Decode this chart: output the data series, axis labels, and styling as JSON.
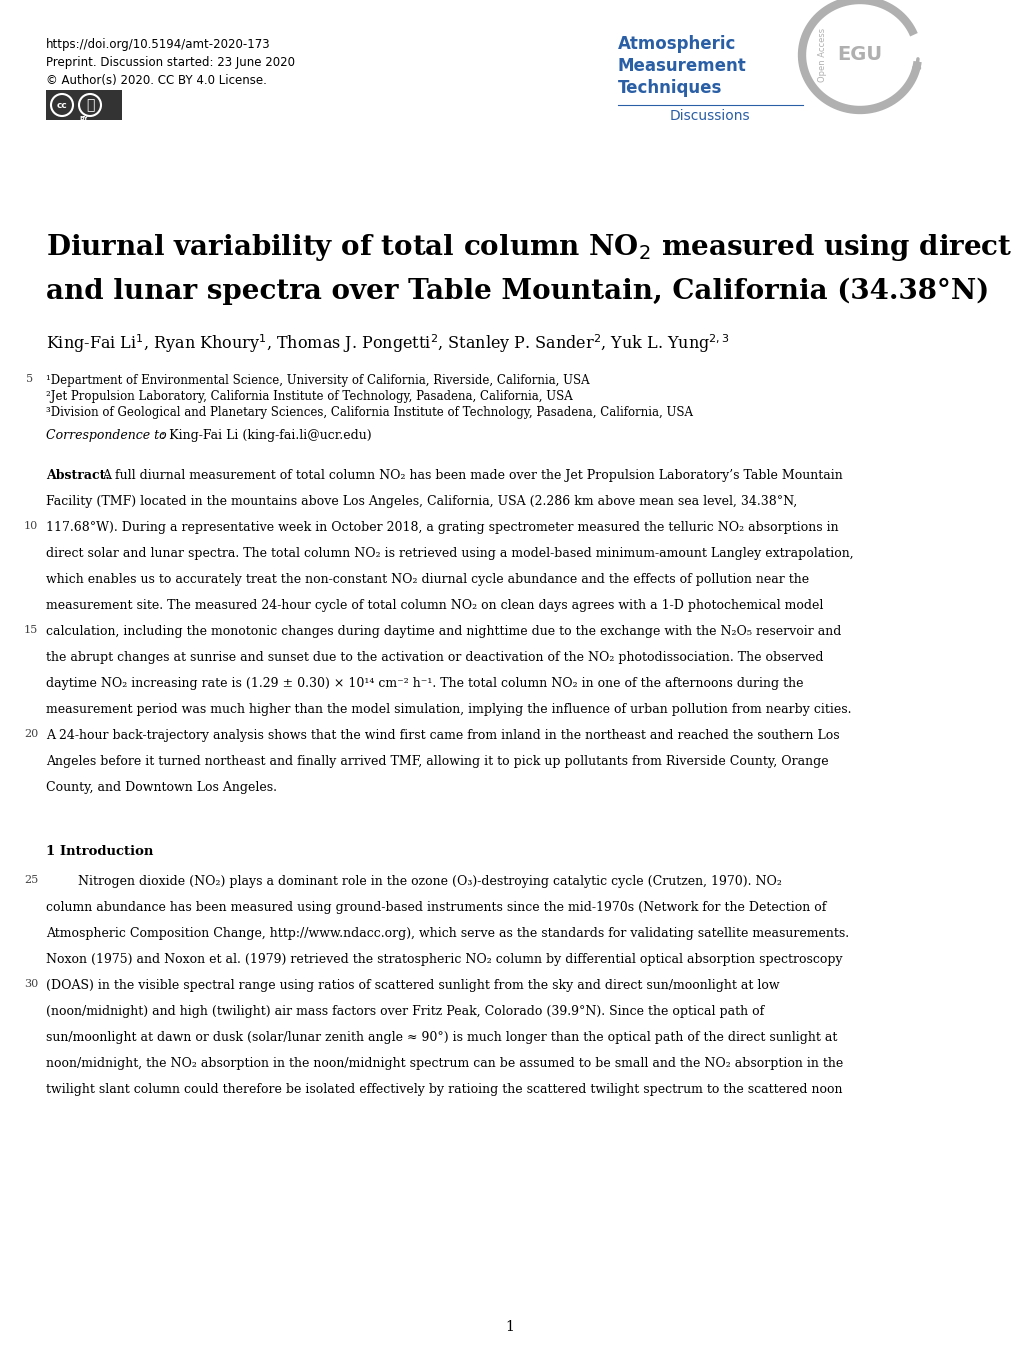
{
  "doi_line": "https://doi.org/10.5194/amt-2020-173",
  "preprint_line": "Preprint. Discussion started: 23 June 2020",
  "license_line": "© Author(s) 2020. CC BY 4.0 License.",
  "journal_name_lines": [
    "Atmospheric",
    "Measurement",
    "Techniques"
  ],
  "journal_sub": "Discussions",
  "journal_color": "#2a5fa5",
  "journal_sub_color": "#2a5fa5",
  "title_line2": "and lunar spectra over Table Mountain, California (34.38°N)",
  "authors": "King-Fai Li¹, Ryan Khoury¹, Thomas J. Pongetti², Stanley P. Sander², Yuk L. Yung²’³",
  "affil1": "¹Department of Environmental Science, University of California, Riverside, California, USA",
  "affil2": "²Jet Propulsion Laboratory, California Institute of Technology, Pasadena, California, USA",
  "affil3": "³Division of Geological and Planetary Sciences, California Institute of Technology, Pasadena, California, USA",
  "page_number": "1",
  "bg_color": "#ffffff",
  "abstract_lines": [
    "A full diurnal measurement of total column NO₂ has been made over the Jet Propulsion Laboratory’s Table Mountain",
    "Facility (TMF) located in the mountains above Los Angeles, California, USA (2.286 km above mean sea level, 34.38°N,",
    "117.68°W). During a representative week in October 2018, a grating spectrometer measured the telluric NO₂ absorptions in",
    "direct solar and lunar spectra. The total column NO₂ is retrieved using a model-based minimum-amount Langley extrapolation,",
    "which enables us to accurately treat the non-constant NO₂ diurnal cycle abundance and the effects of pollution near the",
    "measurement site. The measured 24-hour cycle of total column NO₂ on clean days agrees with a 1-D photochemical model",
    "calculation, including the monotonic changes during daytime and nighttime due to the exchange with the N₂O₅ reservoir and",
    "the abrupt changes at sunrise and sunset due to the activation or deactivation of the NO₂ photodissociation. The observed",
    "daytime NO₂ increasing rate is (1.29 ± 0.30) × 10¹⁴ cm⁻² h⁻¹. The total column NO₂ in one of the afternoons during the",
    "measurement period was much higher than the model simulation, implying the influence of urban pollution from nearby cities.",
    "A 24-hour back-trajectory analysis shows that the wind first came from inland in the northeast and reached the southern Los",
    "Angeles before it turned northeast and finally arrived TMF, allowing it to pick up pollutants from Riverside County, Orange",
    "County, and Downtown Los Angeles."
  ],
  "intro_lines": [
    "        Nitrogen dioxide (NO₂) plays a dominant role in the ozone (O₃)-destroying catalytic cycle (Crutzen, 1970). NO₂",
    "column abundance has been measured using ground-based instruments since the mid-1970s (Network for the Detection of",
    "Atmospheric Composition Change, http://www.ndacc.org), which serve as the standards for validating satellite measurements.",
    "Noxon (1975) and Noxon et al. (1979) retrieved the stratospheric NO₂ column by differential optical absorption spectroscopy",
    "(DOAS) in the visible spectral range using ratios of scattered sunlight from the sky and direct sun/moonlight at low",
    "(noon/midnight) and high (twilight) air mass factors over Fritz Peak, Colorado (39.9°N). Since the optical path of",
    "sun/moonlight at dawn or dusk (solar/lunar zenith angle ≈ 90°) is much longer than the optical path of the direct sunlight at",
    "noon/midnight, the NO₂ absorption in the noon/midnight spectrum can be assumed to be small and the NO₂ absorption in the",
    "twilight slant column could therefore be isolated effectively by ratioing the scattered twilight spectrum to the scattered noon"
  ]
}
